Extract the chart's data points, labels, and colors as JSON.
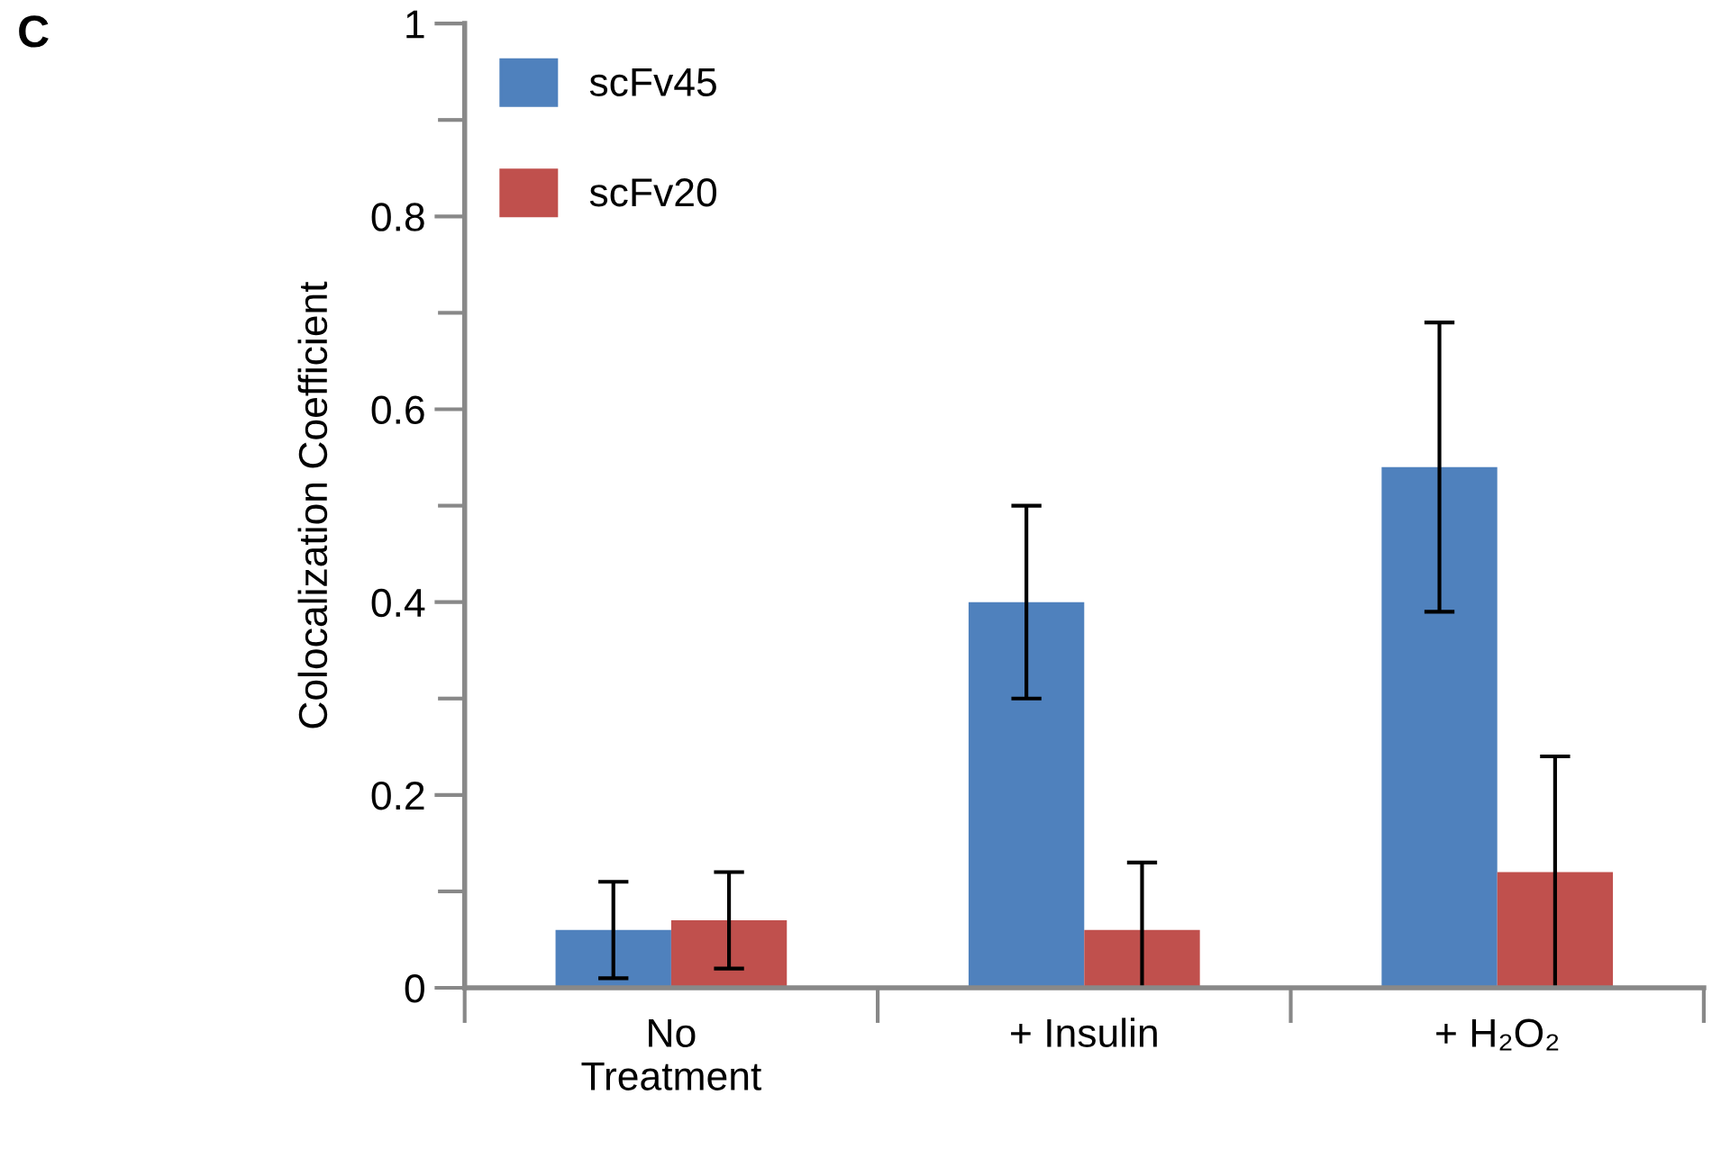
{
  "chart_data": {
    "type": "bar",
    "annotations": [
      "C"
    ],
    "ylabel": "Colocalization Coefficient",
    "categories": [
      "No\nTreatment",
      "+ Insulin",
      "+ H₂O₂"
    ],
    "series": [
      {
        "name": "scFv45",
        "color": "#4f81bd",
        "values": [
          0.06,
          0.4,
          0.54
        ],
        "errors": [
          [
            0.01,
            0.11
          ],
          [
            0.3,
            0.5
          ],
          [
            0.39,
            0.69
          ]
        ]
      },
      {
        "name": "scFv20",
        "color": "#c0504d",
        "values": [
          0.07,
          0.06,
          0.12
        ],
        "errors": [
          [
            0.02,
            0.12
          ],
          [
            0.0,
            0.13
          ],
          [
            0.0,
            0.24
          ]
        ]
      }
    ],
    "ylim": [
      0,
      1
    ],
    "yticks": [
      0,
      {
        "value": 0.1,
        "label": null
      },
      0.2,
      {
        "value": 0.3,
        "label": null
      },
      0.4,
      {
        "value": 0.5,
        "label": null
      },
      0.6,
      {
        "value": 0.7,
        "label": null
      },
      0.8,
      {
        "value": 0.9,
        "label": null
      },
      1
    ],
    "grid": false,
    "legend": "top left"
  }
}
